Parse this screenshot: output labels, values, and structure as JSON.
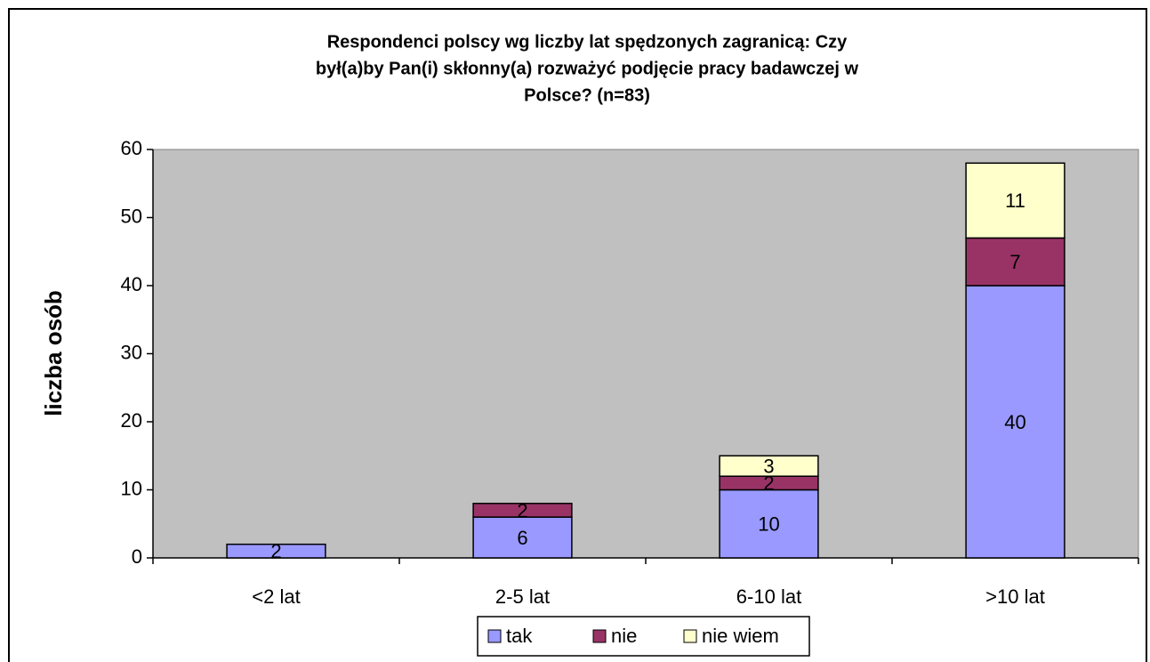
{
  "chart_data": {
    "type": "stacked_bar",
    "title": [
      "Respondenci polscy wg liczby lat spędzonych zagranicą: Czy",
      "był(a)by Pan(i) skłonny(a) rozważyć podjęcie pracy badawczej w",
      "Polsce? (n=83)"
    ],
    "y_label": "liczba osób",
    "categories": [
      "<2 lat",
      "2-5 lat",
      "6-10 lat",
      ">10 lat"
    ],
    "series": [
      {
        "name": "tak",
        "color": "#9999ff",
        "values": [
          2,
          6,
          10,
          40
        ]
      },
      {
        "name": "nie",
        "color": "#993366",
        "values": [
          null,
          2,
          2,
          7
        ]
      },
      {
        "name": "nie wiem",
        "color": "#ffffcc",
        "values": [
          null,
          null,
          3,
          11
        ]
      }
    ],
    "ylim": [
      0,
      60
    ],
    "yticks": [
      0,
      10,
      20,
      30,
      40,
      50,
      60
    ],
    "grid": false,
    "legend": "bottom"
  }
}
